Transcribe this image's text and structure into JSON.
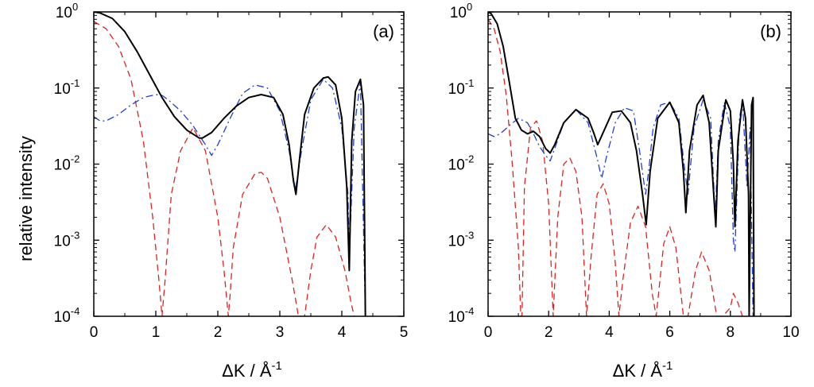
{
  "figure": {
    "ylabel": "relative intensity",
    "y_tick_labels": [
      {
        "base": "10",
        "exp": "0"
      },
      {
        "base": "10",
        "exp": "-1"
      },
      {
        "base": "10",
        "exp": "-2"
      },
      {
        "base": "10",
        "exp": "-3"
      },
      {
        "base": "10",
        "exp": "-4"
      }
    ],
    "xlabel_parts": {
      "main": "ΔK / Å",
      "exp": "-1"
    }
  },
  "colors": {
    "total": "#000000",
    "dashed_red": "#dd2222",
    "dashdot_blue": "#1f3fd0"
  },
  "chart_data": [
    {
      "type": "line",
      "panel_label": "(a)",
      "xlim": [
        0,
        5
      ],
      "ylim": [
        0.0001,
        1
      ],
      "yscale": "log",
      "x_ticks": [
        "0",
        "1",
        "2",
        "3",
        "4",
        "5"
      ],
      "series": [
        {
          "name": "red-dashed",
          "style": "dashed",
          "x": [
            0.0,
            0.2,
            0.4,
            0.6,
            0.8,
            0.95,
            1.05,
            1.1,
            1.15,
            1.25,
            1.4,
            1.6,
            1.8,
            2.0,
            2.1,
            2.17,
            2.2,
            2.25,
            2.4,
            2.6,
            2.7,
            2.8,
            3.0,
            3.2,
            3.3,
            3.35,
            3.4,
            3.5,
            3.6,
            3.75,
            3.9,
            4.05,
            4.15,
            4.2
          ],
          "y": [
            0.75,
            0.6,
            0.35,
            0.13,
            0.02,
            0.002,
            0.0003,
            0.0001,
            0.0003,
            0.004,
            0.015,
            0.03,
            0.015,
            0.002,
            0.0004,
            0.0001,
            0.0002,
            0.0008,
            0.004,
            0.0075,
            0.0078,
            0.0065,
            0.002,
            0.0003,
            0.0001,
            0.0001,
            0.0001,
            0.0004,
            0.0011,
            0.0016,
            0.0011,
            0.0004,
            0.00015,
            0.0001
          ]
        },
        {
          "name": "blue-dashdot",
          "style": "dashdot",
          "x": [
            0.0,
            0.1,
            0.2,
            0.4,
            0.6,
            0.8,
            1.0,
            1.1,
            1.2,
            1.4,
            1.6,
            1.8,
            1.9,
            2.0,
            2.2,
            2.4,
            2.6,
            2.8,
            3.0,
            3.15,
            3.25,
            3.35,
            3.5,
            3.7,
            3.85,
            4.0,
            4.1,
            4.12,
            4.2,
            4.3,
            4.38
          ],
          "y": [
            0.042,
            0.037,
            0.037,
            0.045,
            0.06,
            0.075,
            0.082,
            0.08,
            0.07,
            0.05,
            0.032,
            0.018,
            0.013,
            0.018,
            0.04,
            0.085,
            0.11,
            0.1,
            0.05,
            0.015,
            0.0045,
            0.015,
            0.07,
            0.13,
            0.1,
            0.03,
            0.004,
            0.0006,
            0.03,
            0.12,
            0.0001
          ]
        },
        {
          "name": "black-total",
          "style": "solid",
          "x": [
            0.0,
            0.1,
            0.3,
            0.5,
            0.7,
            0.9,
            1.1,
            1.3,
            1.5,
            1.7,
            1.75,
            1.9,
            2.1,
            2.3,
            2.5,
            2.7,
            2.9,
            3.05,
            3.15,
            3.22,
            3.26,
            3.32,
            3.4,
            3.55,
            3.7,
            3.78,
            3.9,
            4.0,
            4.08,
            4.12,
            4.16,
            4.22,
            4.3,
            4.35,
            4.38
          ],
          "y": [
            1.0,
            0.97,
            0.82,
            0.55,
            0.3,
            0.15,
            0.075,
            0.042,
            0.028,
            0.022,
            0.022,
            0.026,
            0.04,
            0.058,
            0.075,
            0.082,
            0.075,
            0.045,
            0.018,
            0.006,
            0.004,
            0.012,
            0.045,
            0.1,
            0.135,
            0.14,
            0.11,
            0.04,
            0.005,
            0.0004,
            0.02,
            0.09,
            0.13,
            0.06,
            0.0001
          ]
        }
      ]
    },
    {
      "type": "line",
      "panel_label": "(b)",
      "xlim": [
        0,
        10
      ],
      "ylim": [
        0.0001,
        1
      ],
      "yscale": "log",
      "x_ticks": [
        "0",
        "2",
        "4",
        "6",
        "8",
        "10"
      ],
      "series": [
        {
          "name": "red-dashed",
          "style": "dashed",
          "x": [
            0.0,
            0.2,
            0.4,
            0.6,
            0.8,
            1.0,
            1.08,
            1.12,
            1.2,
            1.4,
            1.6,
            1.8,
            2.0,
            2.15,
            2.3,
            2.5,
            2.7,
            2.9,
            3.1,
            3.25,
            3.4,
            3.6,
            3.8,
            4.0,
            4.2,
            4.32,
            4.45,
            4.7,
            4.95,
            5.2,
            5.42,
            5.55,
            5.8,
            6.0,
            6.2,
            6.45,
            6.6,
            6.85,
            7.05,
            7.3,
            7.55,
            7.75,
            8.0,
            8.1,
            8.25,
            8.4
          ],
          "y": [
            0.8,
            0.6,
            0.3,
            0.08,
            0.01,
            0.0008,
            0.0001,
            0.0001,
            0.005,
            0.03,
            0.037,
            0.02,
            0.003,
            0.0001,
            0.002,
            0.01,
            0.012,
            0.008,
            0.002,
            0.0001,
            0.0006,
            0.004,
            0.0055,
            0.003,
            0.0005,
            0.0001,
            0.0003,
            0.0017,
            0.0028,
            0.0015,
            0.0002,
            0.0001,
            0.0009,
            0.0015,
            0.0008,
            0.0001,
            0.0001,
            0.0004,
            0.0007,
            0.0004,
            0.0001,
            0.0001,
            0.00013,
            0.0002,
            0.00015,
            0.0001
          ]
        },
        {
          "name": "blue-dashdot",
          "style": "dashdot",
          "x": [
            0.0,
            0.2,
            0.4,
            0.7,
            1.0,
            1.3,
            1.5,
            1.7,
            1.9,
            2.05,
            2.2,
            2.5,
            2.9,
            3.3,
            3.6,
            3.75,
            3.9,
            4.2,
            4.5,
            4.8,
            5.0,
            5.2,
            5.3,
            5.45,
            5.7,
            6.0,
            6.3,
            6.5,
            6.6,
            6.8,
            7.1,
            7.35,
            7.5,
            7.6,
            7.8,
            8.0,
            8.1,
            8.15,
            8.3,
            8.4,
            8.55,
            8.65,
            8.75
          ],
          "y": [
            0.025,
            0.023,
            0.025,
            0.032,
            0.04,
            0.035,
            0.025,
            0.017,
            0.013,
            0.011,
            0.016,
            0.035,
            0.052,
            0.035,
            0.012,
            0.0065,
            0.012,
            0.035,
            0.055,
            0.05,
            0.015,
            0.004,
            0.008,
            0.03,
            0.06,
            0.065,
            0.04,
            0.008,
            0.004,
            0.03,
            0.07,
            0.04,
            0.002,
            0.02,
            0.065,
            0.03,
            0.001,
            0.0007,
            0.04,
            0.07,
            0.005,
            0.03,
            0.0001
          ]
        },
        {
          "name": "black-total",
          "style": "solid",
          "x": [
            0.0,
            0.1,
            0.3,
            0.5,
            0.7,
            0.9,
            1.1,
            1.3,
            1.5,
            1.7,
            1.9,
            2.05,
            2.2,
            2.5,
            2.9,
            3.3,
            3.5,
            3.62,
            3.8,
            4.1,
            4.4,
            4.7,
            4.9,
            5.1,
            5.22,
            5.35,
            5.6,
            6.0,
            6.3,
            6.45,
            6.53,
            6.65,
            6.9,
            7.1,
            7.3,
            7.45,
            7.52,
            7.6,
            7.85,
            8.0,
            8.1,
            8.15,
            8.25,
            8.4,
            8.5,
            8.6,
            8.62,
            8.7,
            8.75,
            8.78
          ],
          "y": [
            1.0,
            0.95,
            0.7,
            0.35,
            0.12,
            0.04,
            0.028,
            0.025,
            0.027,
            0.023,
            0.016,
            0.014,
            0.018,
            0.035,
            0.052,
            0.04,
            0.025,
            0.018,
            0.026,
            0.048,
            0.05,
            0.035,
            0.015,
            0.004,
            0.0016,
            0.008,
            0.04,
            0.065,
            0.035,
            0.008,
            0.0023,
            0.015,
            0.06,
            0.08,
            0.035,
            0.004,
            0.0015,
            0.015,
            0.07,
            0.05,
            0.01,
            0.0015,
            0.02,
            0.07,
            0.04,
            0.004,
            0.0001,
            0.06,
            0.075,
            0.0001
          ]
        }
      ]
    }
  ]
}
